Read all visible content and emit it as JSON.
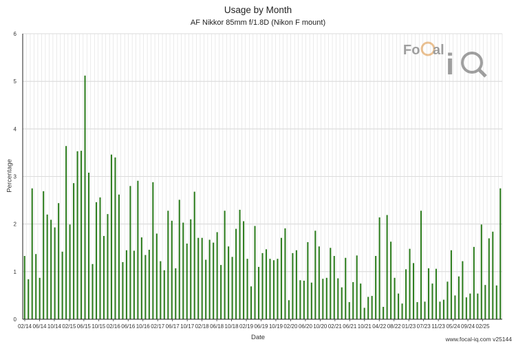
{
  "chart_data": {
    "type": "bar",
    "title": "Usage by Month",
    "subtitle": "AF Nikkor 85mm f/1.8D (Nikon F mount)",
    "xlabel": "Date",
    "ylabel": "Percentage",
    "ylim": [
      0,
      6
    ],
    "yticks": [
      0,
      1,
      2,
      3,
      4,
      5,
      6
    ],
    "grid": true,
    "legend": "none",
    "bar_color": "#2e7d1f",
    "x_tick_labels": [
      "02/14",
      "06/14",
      "10/14",
      "02/15",
      "06/15",
      "10/15",
      "02/16",
      "06/16",
      "10/16",
      "02/17",
      "06/17",
      "10/17",
      "02/18",
      "06/18",
      "10/18",
      "02/19",
      "06/19",
      "10/19",
      "02/20",
      "06/20",
      "10/20",
      "02/21",
      "06/21",
      "10/21",
      "04/22",
      "08/22",
      "01/23",
      "07/23",
      "11/23",
      "05/24",
      "09/24",
      "02/25"
    ],
    "values": [
      1.33,
      0.84,
      2.75,
      1.37,
      0.87,
      2.69,
      2.2,
      2.09,
      1.93,
      2.44,
      1.42,
      3.64,
      1.99,
      2.86,
      3.53,
      3.54,
      5.12,
      3.08,
      1.16,
      2.46,
      2.56,
      1.75,
      2.21,
      3.46,
      3.4,
      2.62,
      1.2,
      1.45,
      2.8,
      1.44,
      2.91,
      1.72,
      1.35,
      1.46,
      2.88,
      1.8,
      1.22,
      1.03,
      2.28,
      2.07,
      1.07,
      2.51,
      2.03,
      1.59,
      2.1,
      2.68,
      1.71,
      1.71,
      1.25,
      1.67,
      1.61,
      1.83,
      1.14,
      2.28,
      1.53,
      1.31,
      1.9,
      2.3,
      2.06,
      1.27,
      0.69,
      1.96,
      1.1,
      1.39,
      1.47,
      1.27,
      1.24,
      1.27,
      1.71,
      1.91,
      0.4,
      1.39,
      1.45,
      0.82,
      0.81,
      1.62,
      0.77,
      1.86,
      1.53,
      0.85,
      0.87,
      1.5,
      1.33,
      0.86,
      0.67,
      1.29,
      0.36,
      0.78,
      1.34,
      0.75,
      0.24,
      0.47,
      0.49,
      1.33,
      2.14,
      0.26,
      2.19,
      1.63,
      0.87,
      0.54,
      0.33,
      1.05,
      1.48,
      1.18,
      0.36,
      2.28,
      0.37,
      1.07,
      0.75,
      1.06,
      0.37,
      0.41,
      0.79,
      1.45,
      0.5,
      0.9,
      1.22,
      0.46,
      0.54,
      1.52,
      0.54,
      1.99,
      0.72,
      1.7,
      1.84,
      0.71,
      2.75
    ]
  },
  "logo": {
    "text_left": "FoCal",
    "text_right": "iQ",
    "colors": {
      "dark": "#444444",
      "accent": "#d8862a"
    }
  },
  "footer": {
    "credit": "www.focal-iq.com  v25144"
  }
}
